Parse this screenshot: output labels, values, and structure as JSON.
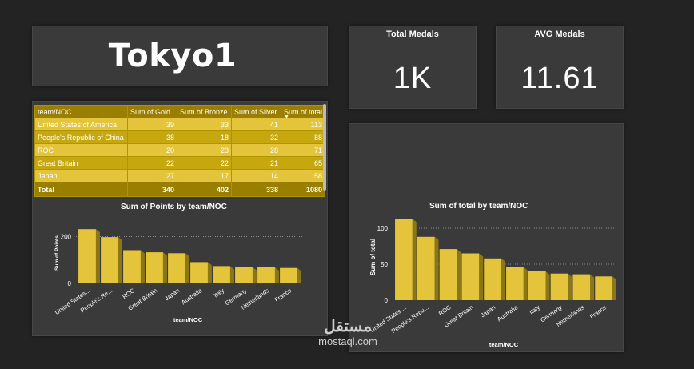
{
  "dashboard": {
    "title": "Tokyo1",
    "kpis": [
      {
        "label": "Total Medals",
        "value": "1K"
      },
      {
        "label": "AVG Medals",
        "value": "11.61"
      }
    ],
    "watermark": {
      "arabic": "مستقل",
      "latin": "mostaql.com"
    }
  },
  "table": {
    "headers": [
      "team/NOC",
      "Sum of Gold",
      "Sum of Bronze",
      "Sum of Silver",
      "Sum of total"
    ],
    "sort_indicator": "▼",
    "rows": [
      [
        "United States of America",
        "39",
        "33",
        "41",
        "113"
      ],
      [
        "People's Republic of China",
        "38",
        "18",
        "32",
        "88"
      ],
      [
        "ROC",
        "20",
        "23",
        "28",
        "71"
      ],
      [
        "Great Britain",
        "22",
        "22",
        "21",
        "65"
      ],
      [
        "Japan",
        "27",
        "17",
        "14",
        "58"
      ]
    ],
    "total": [
      "Total",
      "340",
      "402",
      "338",
      "1080"
    ]
  },
  "chart_data": [
    {
      "type": "bar",
      "title": "Sum of Points by team/NOC",
      "xlabel": "team/NOC",
      "ylabel": "Sum of Points",
      "categories": [
        "United States...",
        "People's Re...",
        "ROC",
        "Great Britain",
        "Japan",
        "Australia",
        "Italy",
        "Germany",
        "Netherlands",
        "France"
      ],
      "values": [
        232,
        198,
        142,
        133,
        129,
        91,
        74,
        70,
        69,
        66
      ],
      "ylim": [
        0,
        260
      ],
      "yticks": [
        0,
        200
      ],
      "grid": true,
      "color": "#e3c43a"
    },
    {
      "type": "bar",
      "title": "Sum of total by team/NOC",
      "xlabel": "team/NOC",
      "ylabel": "Sum of total",
      "categories": [
        "United States ...",
        "People's Repu...",
        "ROC",
        "Great Britain",
        "Japan",
        "Australia",
        "Italy",
        "Germany",
        "Netherlands",
        "France"
      ],
      "values": [
        113,
        88,
        71,
        65,
        58,
        46,
        40,
        37,
        36,
        33
      ],
      "ylim": [
        0,
        120
      ],
      "yticks": [
        0,
        50,
        100
      ],
      "grid": true,
      "color": "#e3c43a"
    }
  ]
}
